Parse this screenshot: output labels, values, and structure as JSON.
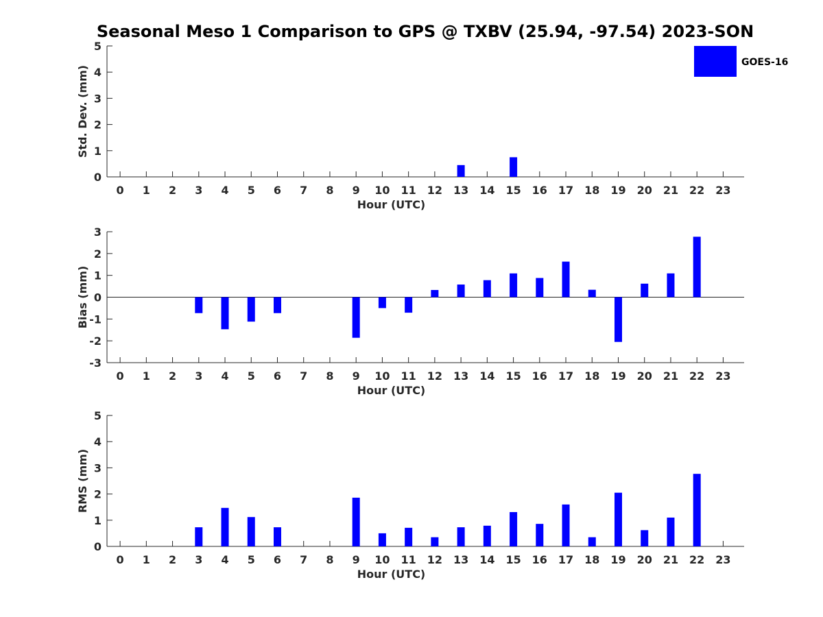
{
  "title": "Seasonal Meso 1 Comparison to GPS @ TXBV (25.94, -97.54) 2023-SON",
  "legend": {
    "label": "GOES-16",
    "color": "#0000ff",
    "placement": "top-right"
  },
  "chart_data": [
    {
      "type": "bar",
      "name": "std",
      "ylabel": "Std. Dev. (mm)",
      "xlabel": "Hour (UTC)",
      "categories": [
        "0",
        "1",
        "2",
        "3",
        "4",
        "5",
        "6",
        "7",
        "8",
        "9",
        "10",
        "11",
        "12",
        "13",
        "14",
        "15",
        "16",
        "17",
        "18",
        "19",
        "20",
        "21",
        "22",
        "23"
      ],
      "x": [
        0,
        1,
        2,
        3,
        4,
        5,
        6,
        7,
        8,
        9,
        10,
        11,
        12,
        13,
        14,
        15,
        16,
        17,
        18,
        19,
        20,
        21,
        22,
        23
      ],
      "series": [
        {
          "name": "GOES-16",
          "values": [
            null,
            null,
            null,
            null,
            null,
            null,
            null,
            null,
            null,
            null,
            null,
            null,
            null,
            0.45,
            null,
            0.75,
            null,
            null,
            null,
            null,
            null,
            null,
            null,
            null
          ]
        }
      ],
      "ylim": [
        0,
        5
      ],
      "yticks": [
        0,
        1,
        2,
        3,
        4,
        5
      ],
      "zero_line": false
    },
    {
      "type": "bar",
      "name": "bias",
      "ylabel": "Bias (mm)",
      "xlabel": "Hour (UTC)",
      "categories": [
        "0",
        "1",
        "2",
        "3",
        "4",
        "5",
        "6",
        "7",
        "8",
        "9",
        "10",
        "11",
        "12",
        "13",
        "14",
        "15",
        "16",
        "17",
        "18",
        "19",
        "20",
        "21",
        "22",
        "23"
      ],
      "x": [
        0,
        1,
        2,
        3,
        4,
        5,
        6,
        7,
        8,
        9,
        10,
        11,
        12,
        13,
        14,
        15,
        16,
        17,
        18,
        19,
        20,
        21,
        22,
        23
      ],
      "series": [
        {
          "name": "GOES-16",
          "values": [
            null,
            null,
            null,
            -0.73,
            -1.47,
            -1.12,
            -0.73,
            null,
            null,
            -1.86,
            -0.5,
            -0.71,
            0.33,
            0.58,
            0.78,
            1.09,
            0.88,
            1.63,
            0.34,
            -2.05,
            0.62,
            1.09,
            2.77,
            null
          ]
        }
      ],
      "ylim": [
        -3,
        3
      ],
      "yticks": [
        -3,
        -2,
        -1,
        0,
        1,
        2,
        3
      ],
      "zero_line": true
    },
    {
      "type": "bar",
      "name": "rms",
      "ylabel": "RMS (mm)",
      "xlabel": "Hour (UTC)",
      "categories": [
        "0",
        "1",
        "2",
        "3",
        "4",
        "5",
        "6",
        "7",
        "8",
        "9",
        "10",
        "11",
        "12",
        "13",
        "14",
        "15",
        "16",
        "17",
        "18",
        "19",
        "20",
        "21",
        "22",
        "23"
      ],
      "x": [
        0,
        1,
        2,
        3,
        4,
        5,
        6,
        7,
        8,
        9,
        10,
        11,
        12,
        13,
        14,
        15,
        16,
        17,
        18,
        19,
        20,
        21,
        22,
        23
      ],
      "series": [
        {
          "name": "GOES-16",
          "values": [
            null,
            null,
            null,
            0.73,
            1.47,
            1.12,
            0.73,
            null,
            null,
            1.86,
            0.5,
            0.71,
            0.35,
            0.73,
            0.79,
            1.31,
            0.86,
            1.6,
            0.35,
            2.05,
            0.62,
            1.1,
            2.77,
            null
          ]
        }
      ],
      "ylim": [
        0,
        5
      ],
      "yticks": [
        0,
        1,
        2,
        3,
        4,
        5
      ],
      "zero_line": false
    }
  ]
}
